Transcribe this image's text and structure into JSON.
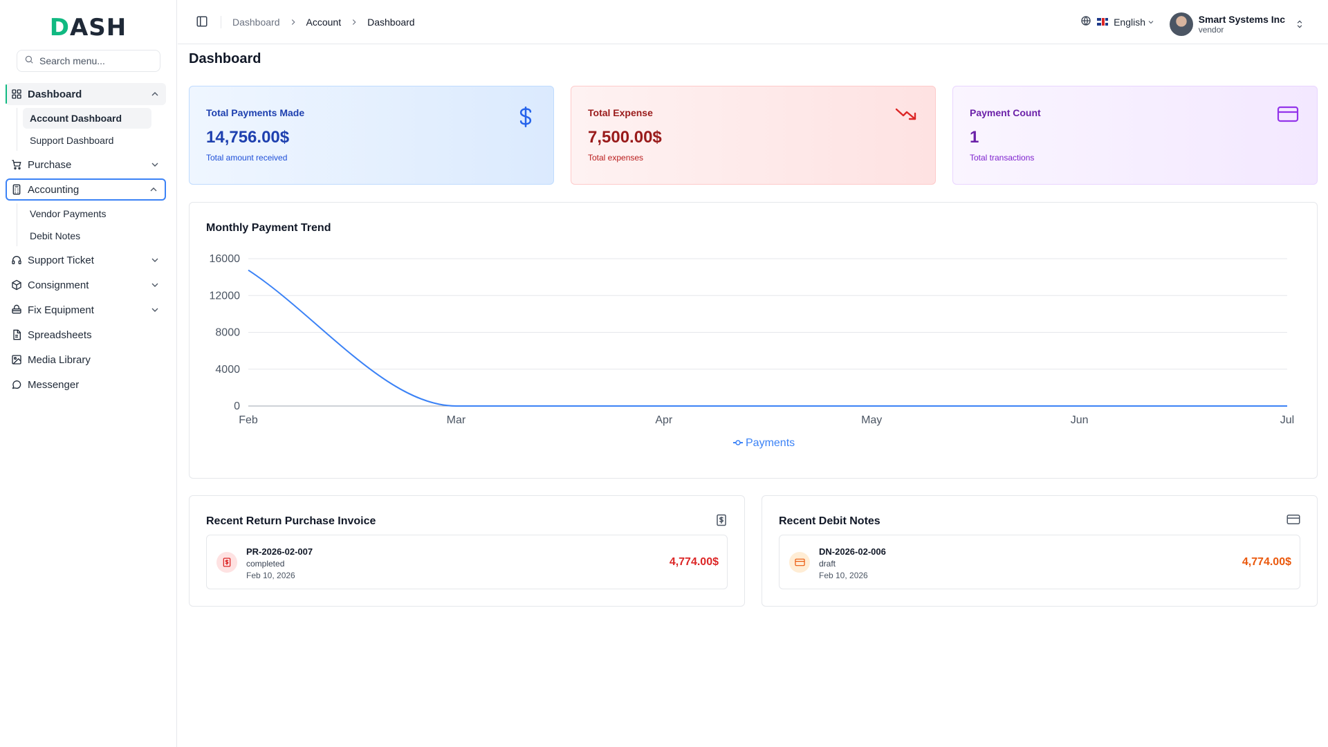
{
  "brand": {
    "logo_first": "D",
    "logo_rest": "ASH"
  },
  "sidebar": {
    "search_placeholder": "Search menu...",
    "items": [
      {
        "label": "Dashboard",
        "icon": "grid-icon",
        "expanded": true,
        "children": [
          "Account Dashboard",
          "Support Dashboard"
        ]
      },
      {
        "label": "Purchase",
        "icon": "cart-icon"
      },
      {
        "label": "Accounting",
        "icon": "calculator-icon",
        "expanded": true,
        "children": [
          "Vendor Payments",
          "Debit Notes"
        ]
      },
      {
        "label": "Support Ticket",
        "icon": "headset-icon"
      },
      {
        "label": "Consignment",
        "icon": "box-icon"
      },
      {
        "label": "Fix Equipment",
        "icon": "tool-icon"
      },
      {
        "label": "Spreadsheets",
        "icon": "sheet-icon"
      },
      {
        "label": "Media Library",
        "icon": "image-icon"
      },
      {
        "label": "Messenger",
        "icon": "chat-icon"
      }
    ]
  },
  "header": {
    "breadcrumbs": [
      "Dashboard",
      "Account",
      "Dashboard"
    ],
    "language": "English",
    "user_name": "Smart Systems Inc",
    "user_role": "vendor"
  },
  "page_title": "Dashboard",
  "stats": [
    {
      "label": "Total Payments Made",
      "value": "14,756.00$",
      "sub": "Total amount received",
      "icon": "dollar-icon",
      "color": "#1e40af"
    },
    {
      "label": "Total Expense",
      "value": "7,500.00$",
      "sub": "Total expenses",
      "icon": "trending-down-icon",
      "color": "#991b1b"
    },
    {
      "label": "Payment Count",
      "value": "1",
      "sub": "Total transactions",
      "icon": "credit-card-icon",
      "color": "#6b21a8"
    }
  ],
  "chart_title": "Monthly Payment Trend",
  "chart_data": {
    "type": "line",
    "categories": [
      "Feb",
      "Mar",
      "Apr",
      "May",
      "Jun",
      "Jul"
    ],
    "series": [
      {
        "name": "Payments",
        "values": [
          14756,
          0,
          0,
          0,
          0,
          0
        ],
        "color": "#3b82f6"
      }
    ],
    "yticks": [
      "0",
      "4000",
      "8000",
      "12000",
      "16000"
    ],
    "ylim": [
      0,
      16000
    ],
    "grid": true,
    "legend": "bottom"
  },
  "recent_returns": {
    "title": "Recent Return Purchase Invoice",
    "item": {
      "code": "PR-2026-02-007",
      "status": "completed",
      "date": "Feb 10, 2026",
      "amount": "4,774.00$"
    }
  },
  "recent_debit_notes": {
    "title": "Recent Debit Notes",
    "item": {
      "code": "DN-2026-02-006",
      "status": "draft",
      "date": "Feb 10, 2026",
      "amount": "4,774.00$"
    }
  }
}
